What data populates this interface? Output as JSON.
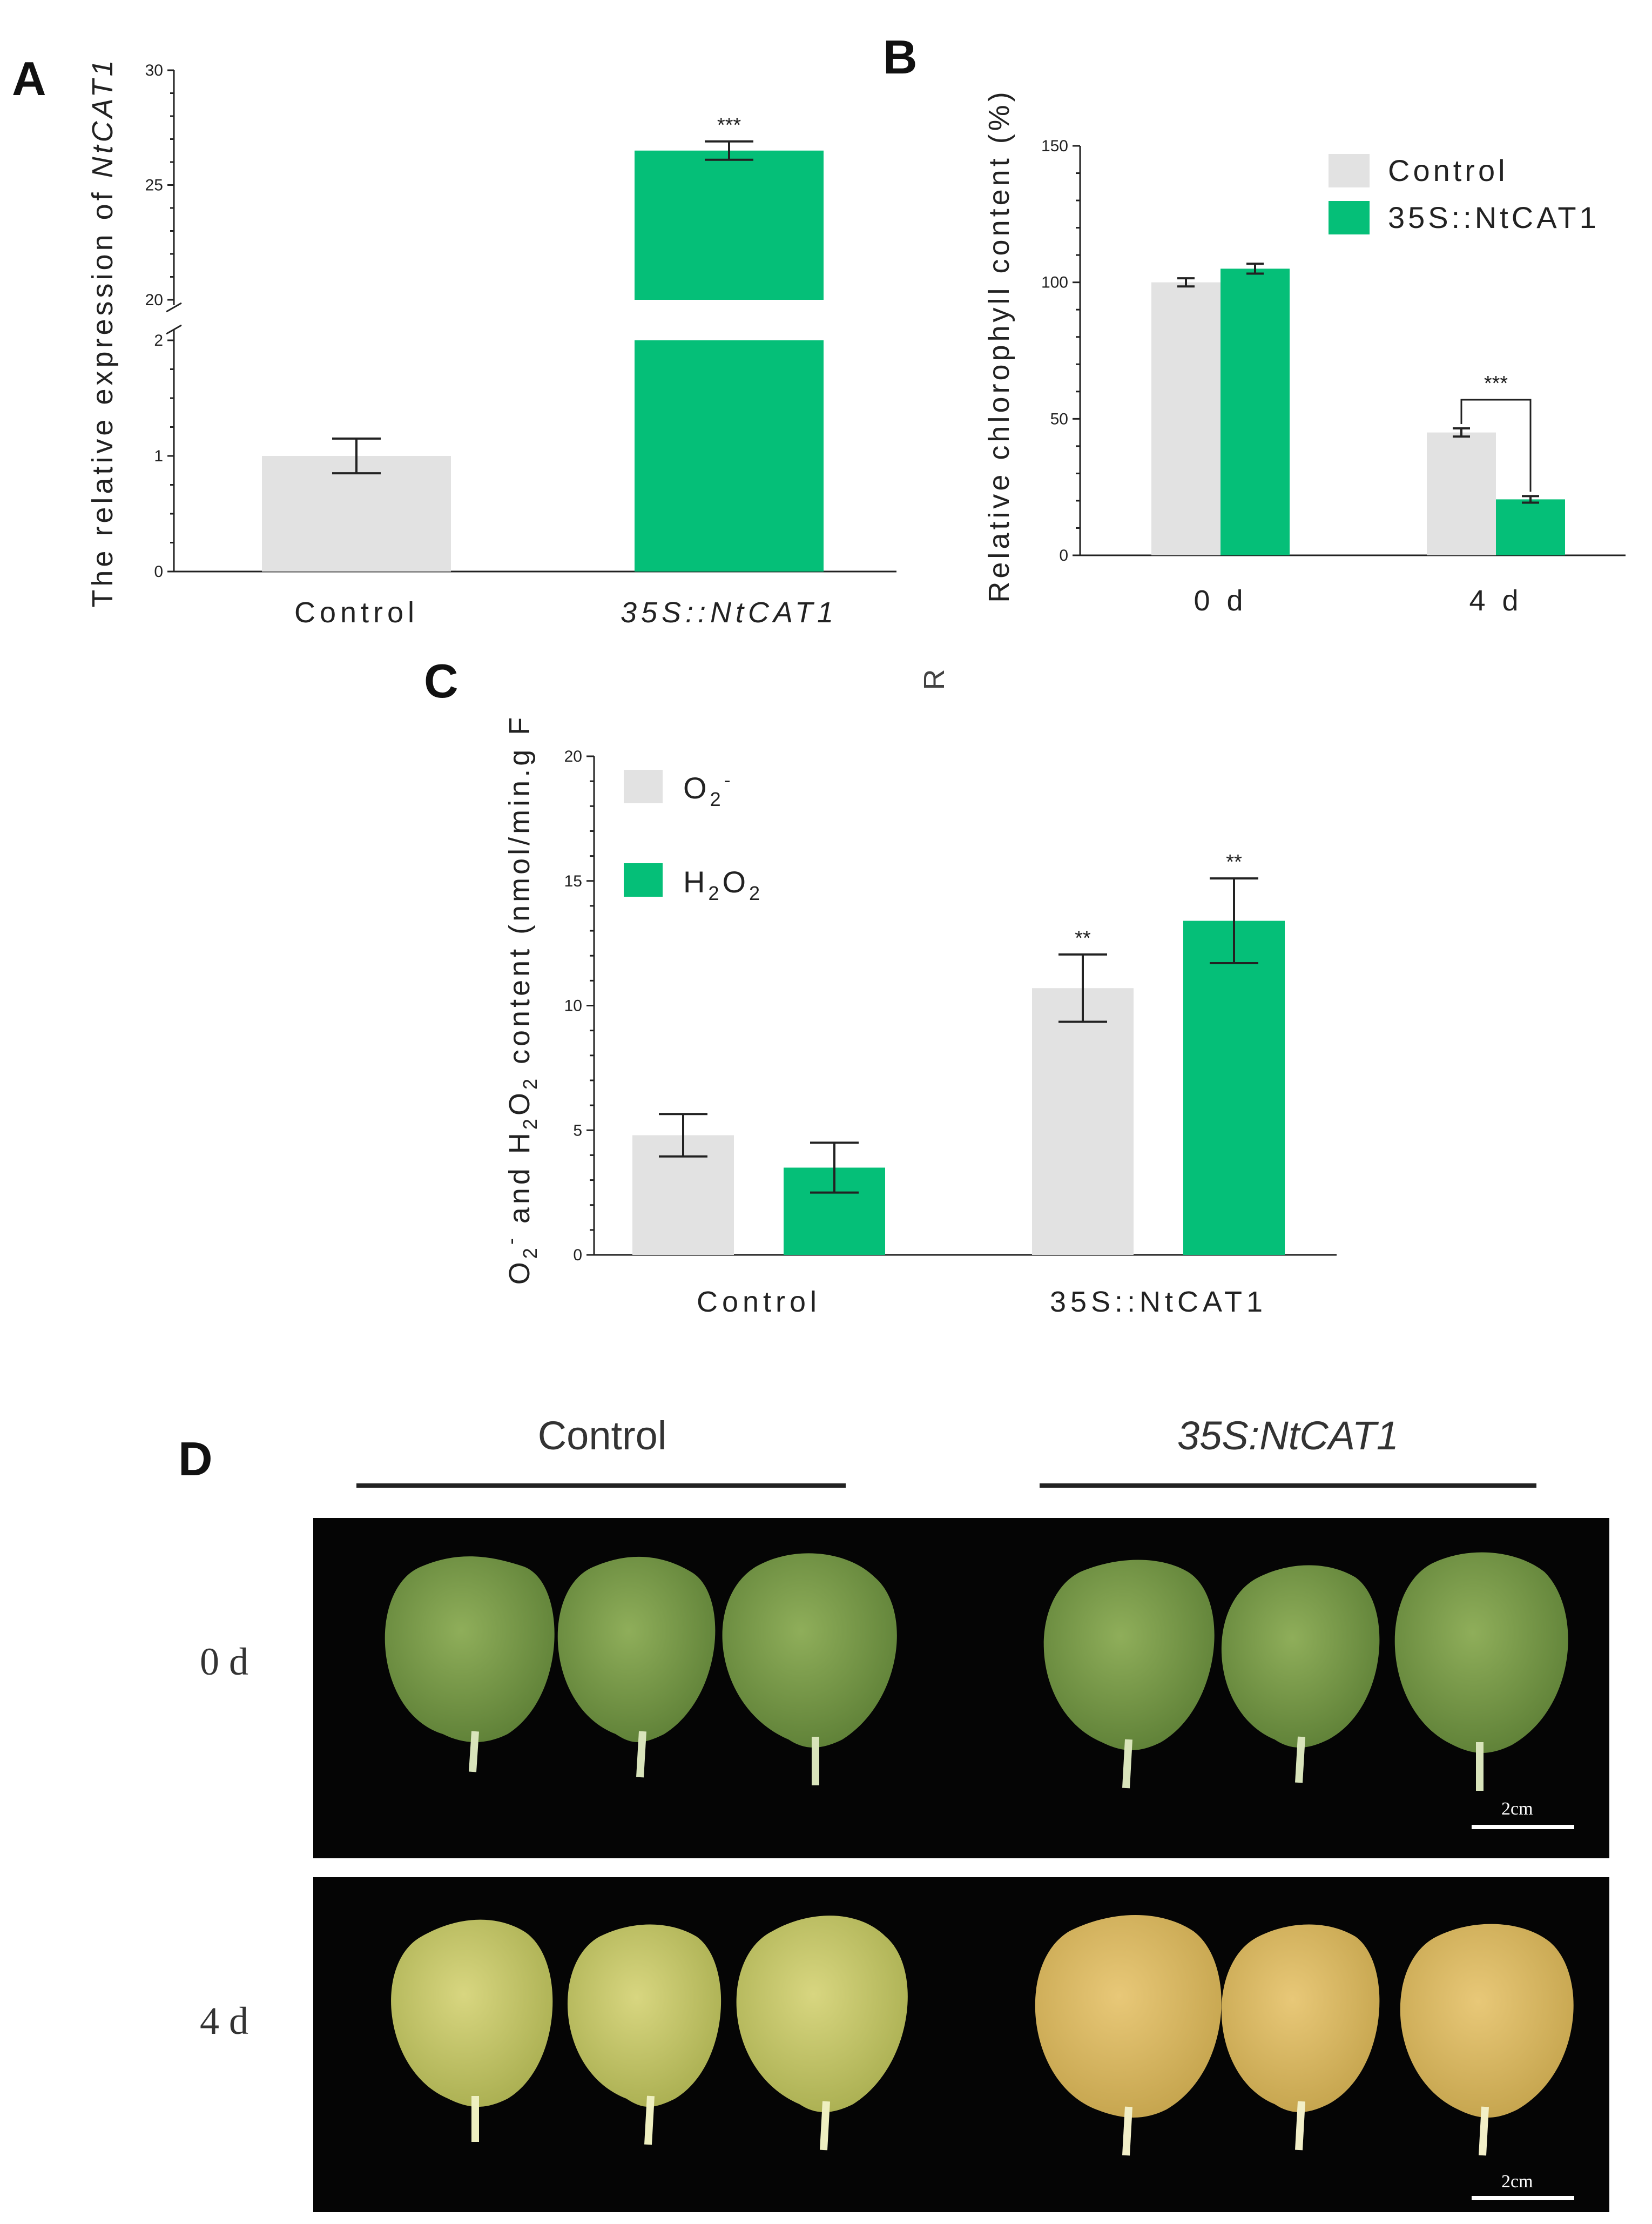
{
  "colors": {
    "control": "#e2e2e2",
    "transgenic": "#05bf78",
    "axis": "#222222"
  },
  "panels": {
    "a": "A",
    "b": "B",
    "c": "C",
    "d": "D"
  },
  "chart_data": [
    {
      "id": "A",
      "type": "bar",
      "categories": [
        "Control",
        "35S::NtCAT1"
      ],
      "values": [
        1.0,
        26.5
      ],
      "errors": [
        0.15,
        0.4
      ],
      "significance": [
        "",
        "***"
      ],
      "ylabel_prefix": "The relative expression of ",
      "ylabel_gene": "NtCAT1",
      "y_axis_break": true,
      "lower_ticks": [
        "0",
        "1",
        "2"
      ],
      "upper_ticks": [
        "20",
        "25",
        "30"
      ]
    },
    {
      "id": "B",
      "type": "bar",
      "categories": [
        "0 d",
        "4 d"
      ],
      "series": [
        {
          "name": "Control",
          "values": [
            100,
            45
          ],
          "errors": [
            1.5,
            1.5
          ]
        },
        {
          "name": "35S::NtCAT1",
          "values": [
            105,
            20.5
          ],
          "errors": [
            1.8,
            1.2
          ]
        }
      ],
      "ylabel": "Relative chlorophyll content (%)",
      "ylim": [
        0,
        150
      ],
      "yticks": [
        "0",
        "50",
        "100",
        "150"
      ],
      "significance": "***",
      "stray_text": "R"
    },
    {
      "id": "C",
      "type": "bar",
      "categories": [
        "Control",
        "35S::NtCAT1"
      ],
      "series": [
        {
          "name": "O2-",
          "values": [
            4.8,
            10.7
          ],
          "errors": [
            0.85,
            1.35
          ]
        },
        {
          "name": "H2O2",
          "values": [
            3.5,
            13.4
          ],
          "errors": [
            1.0,
            1.7
          ]
        }
      ],
      "ylabel": "O2- and H2O2 content (nmol/min.g F",
      "ylim": [
        0,
        20
      ],
      "yticks": [
        "0",
        "5",
        "10",
        "15",
        "20"
      ],
      "significance": [
        "",
        "",
        "**",
        "**"
      ]
    }
  ],
  "photos": {
    "groups": [
      "Control",
      "35S:NtCAT1"
    ],
    "rows": [
      "0 d",
      "4 d"
    ],
    "scale_bar": "2cm"
  }
}
